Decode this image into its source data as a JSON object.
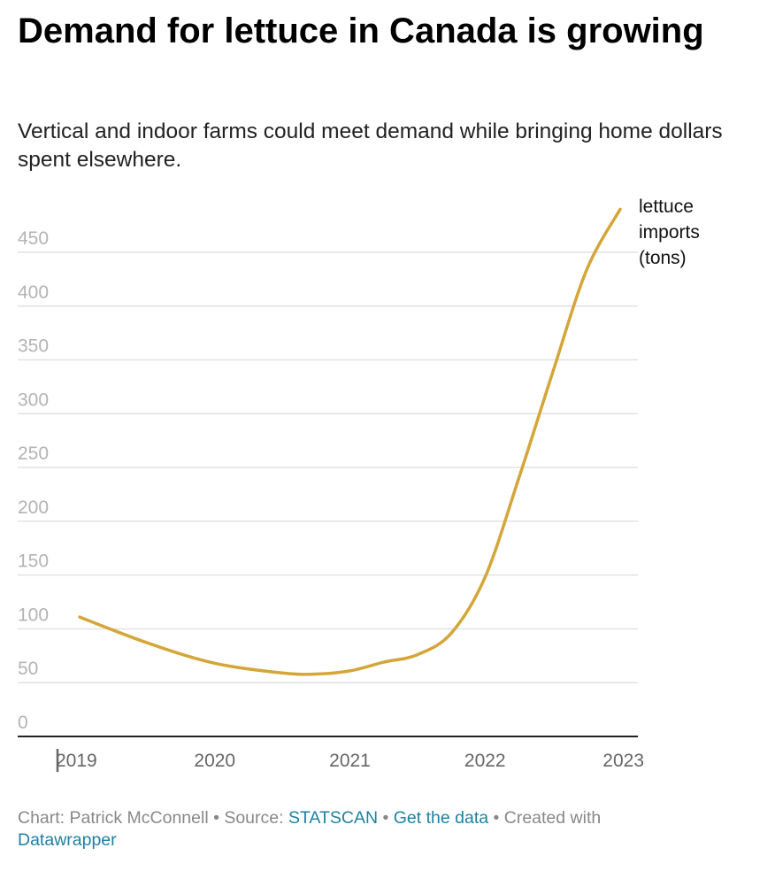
{
  "header": {
    "title": "Demand for lettuce in Canada is growing",
    "subtitle": "Vertical and indoor farms could meet demand while bringing home dollars spent elsewhere."
  },
  "chart_data": {
    "type": "line",
    "title": "Demand for lettuce in Canada is growing",
    "xlabel": "",
    "ylabel": "",
    "x": [
      2019,
      2019.5,
      2020,
      2020.5,
      2020.75,
      2021,
      2021.25,
      2021.5,
      2021.75,
      2022,
      2022.25,
      2022.5,
      2022.75,
      2023
    ],
    "series": [
      {
        "name": "lettuce imports (tons)",
        "color": "#d4a63a",
        "values": [
          111,
          87,
          68,
          59,
          58,
          61,
          69,
          76,
          96,
          148,
          240,
          338,
          433,
          490
        ]
      }
    ],
    "x_ticks": [
      "2019",
      "2020",
      "2021",
      "2022",
      "2023"
    ],
    "y_ticks": [
      "0",
      "50",
      "100",
      "150",
      "200",
      "250",
      "300",
      "350",
      "400",
      "450"
    ],
    "xlim": [
      2019,
      2023
    ],
    "ylim": [
      0,
      450
    ],
    "grid": true,
    "legend": {
      "lines": [
        "lettuce",
        "imports",
        "(tons)"
      ],
      "placement": "right of line end"
    }
  },
  "footer": {
    "credit": "Chart: Patrick McConnell",
    "sep1": " • ",
    "source_label": "Source: ",
    "source_link": "STATSCAN",
    "sep2": " • ",
    "data_link": "Get the data",
    "sep3": " • ",
    "created_with": "Created with ",
    "tool_link": "Datawrapper"
  }
}
